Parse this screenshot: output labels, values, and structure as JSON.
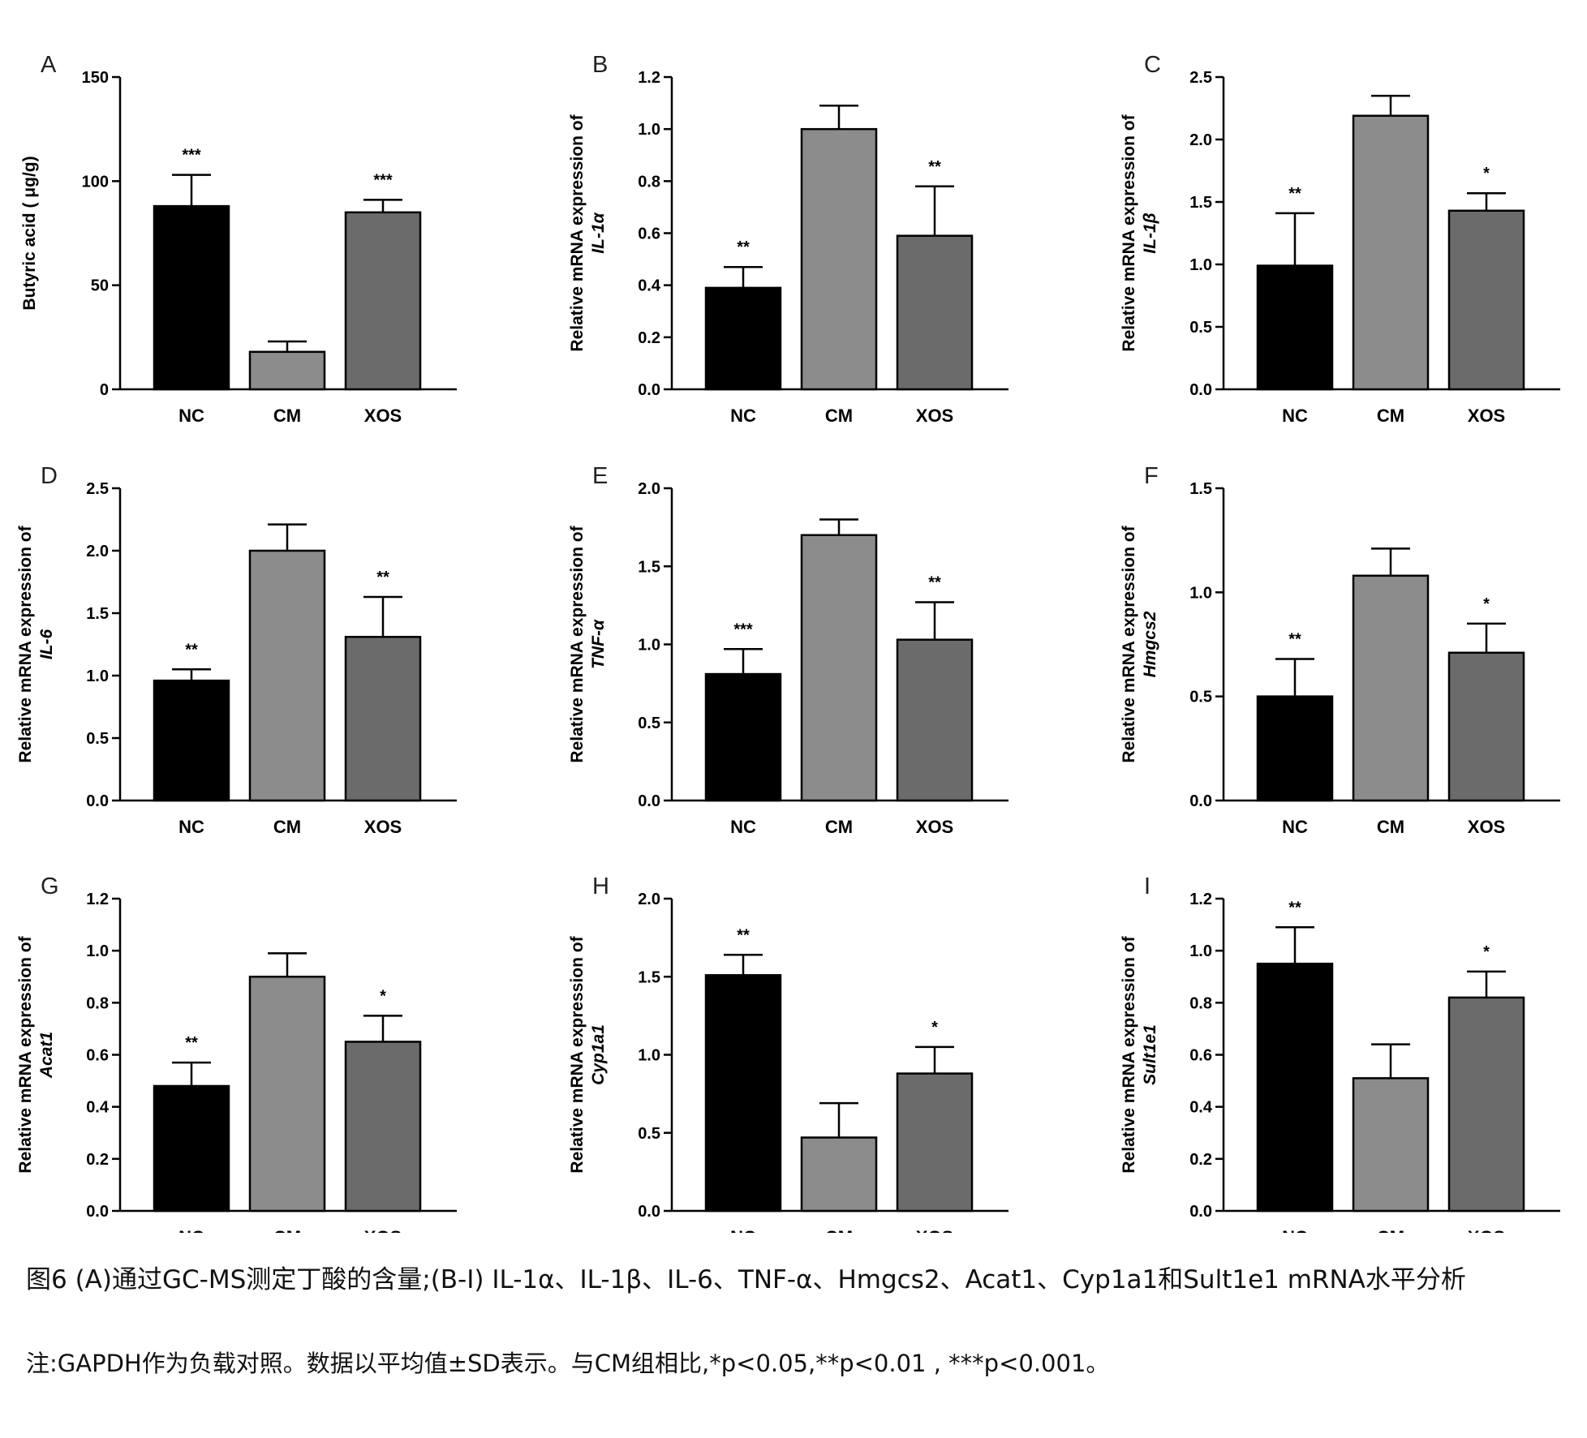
{
  "chart_data": [
    {
      "type": "bar",
      "panel": "A",
      "ylabel": "Butyric acid ( μg/g)",
      "ylabel_gene": "",
      "ylim": [
        0,
        150
      ],
      "ticks": [
        "0",
        "50",
        "100",
        "150"
      ],
      "categories": [
        "NC",
        "CM",
        "XOS"
      ],
      "values": [
        88,
        18,
        85
      ],
      "errors": [
        15,
        5,
        6
      ],
      "sig": [
        "***",
        "",
        "***"
      ],
      "colors": [
        "#000000",
        "#8c8c8c",
        "#6b6b6b"
      ]
    },
    {
      "type": "bar",
      "panel": "B",
      "ylabel": "Relative mRNA expression of",
      "ylabel_gene": "IL-1α",
      "ylim": [
        0,
        1.2
      ],
      "ticks": [
        "0.0",
        "0.2",
        "0.4",
        "0.6",
        "0.8",
        "1.0",
        "1.2"
      ],
      "categories": [
        "NC",
        "CM",
        "XOS"
      ],
      "values": [
        0.39,
        1.0,
        0.59
      ],
      "errors": [
        0.08,
        0.09,
        0.19
      ],
      "sig": [
        "**",
        "",
        "**"
      ],
      "colors": [
        "#000000",
        "#8c8c8c",
        "#6b6b6b"
      ]
    },
    {
      "type": "bar",
      "panel": "C",
      "ylabel": "Relative mRNA expression of",
      "ylabel_gene": "IL-1β",
      "ylim": [
        0,
        2.5
      ],
      "ticks": [
        "0.0",
        "0.5",
        "1.0",
        "1.5",
        "2.0",
        "2.5"
      ],
      "categories": [
        "NC",
        "CM",
        "XOS"
      ],
      "values": [
        0.99,
        2.19,
        1.43
      ],
      "errors": [
        0.42,
        0.16,
        0.14
      ],
      "sig": [
        "**",
        "",
        "*"
      ],
      "colors": [
        "#000000",
        "#8c8c8c",
        "#6b6b6b"
      ]
    },
    {
      "type": "bar",
      "panel": "D",
      "ylabel": "Relative mRNA expression of",
      "ylabel_gene": "IL-6",
      "ylim": [
        0,
        2.5
      ],
      "ticks": [
        "0.0",
        "0.5",
        "1.0",
        "1.5",
        "2.0",
        "2.5"
      ],
      "categories": [
        "NC",
        "CM",
        "XOS"
      ],
      "values": [
        0.96,
        2.0,
        1.31
      ],
      "errors": [
        0.09,
        0.21,
        0.32
      ],
      "sig": [
        "**",
        "",
        "**"
      ],
      "colors": [
        "#000000",
        "#8c8c8c",
        "#6b6b6b"
      ]
    },
    {
      "type": "bar",
      "panel": "E",
      "ylabel": "Relative mRNA expression of",
      "ylabel_gene": "TNF-α",
      "ylim": [
        0,
        2.0
      ],
      "ticks": [
        "0.0",
        "0.5",
        "1.0",
        "1.5",
        "2.0"
      ],
      "categories": [
        "NC",
        "CM",
        "XOS"
      ],
      "values": [
        0.81,
        1.7,
        1.03
      ],
      "errors": [
        0.16,
        0.1,
        0.24
      ],
      "sig": [
        "***",
        "",
        "**"
      ],
      "colors": [
        "#000000",
        "#8c8c8c",
        "#6b6b6b"
      ]
    },
    {
      "type": "bar",
      "panel": "F",
      "ylabel": "Relative mRNA expression of",
      "ylabel_gene": "Hmgcs2",
      "ylim": [
        0,
        1.5
      ],
      "ticks": [
        "0.0",
        "0.5",
        "1.0",
        "1.5"
      ],
      "categories": [
        "NC",
        "CM",
        "XOS"
      ],
      "values": [
        0.5,
        1.08,
        0.71
      ],
      "errors": [
        0.18,
        0.13,
        0.14
      ],
      "sig": [
        "**",
        "",
        "*"
      ],
      "colors": [
        "#000000",
        "#8c8c8c",
        "#6b6b6b"
      ]
    },
    {
      "type": "bar",
      "panel": "G",
      "ylabel": "Relative mRNA expression of",
      "ylabel_gene": "Acat1",
      "ylim": [
        0,
        1.2
      ],
      "ticks": [
        "0.0",
        "0.2",
        "0.4",
        "0.6",
        "0.8",
        "1.0",
        "1.2"
      ],
      "categories": [
        "NC",
        "CM",
        "XOS"
      ],
      "values": [
        0.48,
        0.9,
        0.65
      ],
      "errors": [
        0.09,
        0.09,
        0.1
      ],
      "sig": [
        "**",
        "",
        "*"
      ],
      "colors": [
        "#000000",
        "#8c8c8c",
        "#6b6b6b"
      ]
    },
    {
      "type": "bar",
      "panel": "H",
      "ylabel": "Relative mRNA expression of",
      "ylabel_gene": "Cyp1a1",
      "ylim": [
        0,
        2.0
      ],
      "ticks": [
        "0.0",
        "0.5",
        "1.0",
        "1.5",
        "2.0"
      ],
      "categories": [
        "NC",
        "CM",
        "XOS"
      ],
      "values": [
        1.51,
        0.47,
        0.88
      ],
      "errors": [
        0.13,
        0.22,
        0.17
      ],
      "sig": [
        "**",
        "",
        "*"
      ],
      "colors": [
        "#000000",
        "#8c8c8c",
        "#6b6b6b"
      ]
    },
    {
      "type": "bar",
      "panel": "I",
      "ylabel": "Relative mRNA expression of",
      "ylabel_gene": "Sult1e1",
      "ylim": [
        0,
        1.2
      ],
      "ticks": [
        "0.0",
        "0.2",
        "0.4",
        "0.6",
        "0.8",
        "1.0",
        "1.2"
      ],
      "categories": [
        "NC",
        "CM",
        "XOS"
      ],
      "values": [
        0.95,
        0.51,
        0.82
      ],
      "errors": [
        0.14,
        0.13,
        0.1
      ],
      "sig": [
        "**",
        "",
        "*"
      ],
      "colors": [
        "#000000",
        "#8c8c8c",
        "#6b6b6b"
      ]
    }
  ],
  "caption": {
    "line1": "图6 (A)通过GC-MS测定丁酸的含量;(B-I) IL-1α、IL-1β、IL-6、TNF-α、Hmgcs2、Acat1、Cyp1a1和Sult1e1 mRNA水平分析",
    "line2": "注:GAPDH作为负载对照。数据以平均值±SD表示。与CM组相比,*p<0.05,**p<0.01 , ***p<0.001。"
  }
}
